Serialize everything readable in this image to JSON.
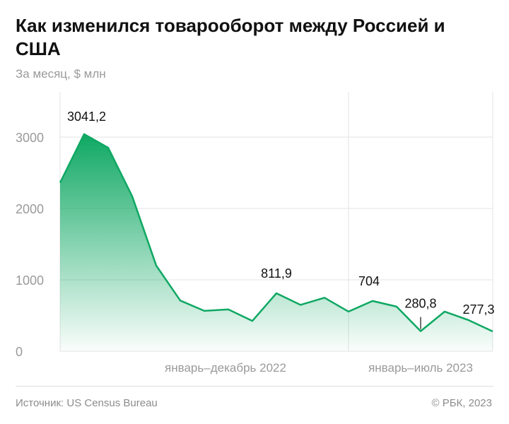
{
  "title": "Как изменился товарооборот между Россией и США",
  "subtitle": "За месяц, $ млн",
  "source": "Источник: US Census Bureau",
  "copyright": "© РБК, 2023",
  "colors": {
    "line": "#0fa863",
    "fill_top": "#0fa863",
    "grid": "#e3e3e3",
    "tick_text": "#9a9a9a"
  },
  "chart_data": {
    "type": "area",
    "title": "Как изменился товарооборот между Россией и США",
    "ylabel": "За месяц, $ млн",
    "ylim": [
      0,
      3600
    ],
    "yticks": [
      0,
      1000,
      2000,
      3000
    ],
    "ytick_labels": [
      "0",
      "1000",
      "2000",
      "3000"
    ],
    "grid": true,
    "x": [
      "2022-01",
      "2022-02",
      "2022-03",
      "2022-04",
      "2022-05",
      "2022-06",
      "2022-07",
      "2022-08",
      "2022-09",
      "2022-10",
      "2022-11",
      "2022-12",
      "2023-01",
      "2023-02",
      "2023-03",
      "2023-04",
      "2023-05",
      "2023-06",
      "2023-07"
    ],
    "values": [
      2360,
      3041.2,
      2850,
      2170,
      1200,
      710,
      565,
      585,
      425,
      811.9,
      650,
      750,
      555,
      704,
      625,
      280.8,
      555,
      435,
      277.3
    ],
    "group_labels": [
      "январь–декабрь 2022",
      "январь–июль 2023"
    ],
    "annotations": [
      {
        "index": 1,
        "label": "3041,2"
      },
      {
        "index": 9,
        "label": "811,9"
      },
      {
        "index": 13,
        "label": "704"
      },
      {
        "index": 15,
        "label": "280,8"
      },
      {
        "index": 18,
        "label": "277,3"
      }
    ]
  }
}
